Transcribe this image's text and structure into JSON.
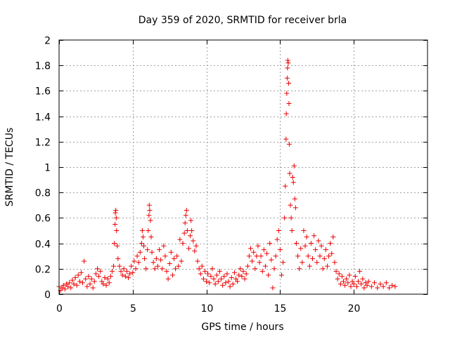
{
  "chart_data": {
    "type": "scatter",
    "title": "Day 359 of 2020, SRMTID for receiver brla",
    "xlabel": "GPS time / hours",
    "ylabel": "SRMTID / TECUs",
    "xlim": [
      0,
      25
    ],
    "ylim": [
      0,
      2
    ],
    "xticks": [
      0,
      5,
      10,
      15,
      20
    ],
    "xtick_labels": [
      "0",
      "5",
      "10",
      "15",
      "20"
    ],
    "yticks": [
      0,
      0.2,
      0.4,
      0.6,
      0.8,
      1,
      1.2,
      1.4,
      1.6,
      1.8,
      2
    ],
    "ytick_labels": [
      "0",
      "0.2",
      "0.4",
      "0.6",
      "0.8",
      "1",
      "1.2",
      "1.4",
      "1.6",
      "1.8",
      "2"
    ],
    "grid": true,
    "marker": "plus",
    "colors": {
      "series": "#ee0000"
    },
    "series": [
      {
        "name": "brla",
        "points": [
          [
            0.0,
            0.06
          ],
          [
            0.1,
            0.03
          ],
          [
            0.2,
            0.05
          ],
          [
            0.3,
            0.07
          ],
          [
            0.4,
            0.04
          ],
          [
            0.5,
            0.08
          ],
          [
            0.6,
            0.06
          ],
          [
            0.7,
            0.09
          ],
          [
            0.8,
            0.05
          ],
          [
            0.9,
            0.11
          ],
          [
            1.0,
            0.08
          ],
          [
            1.1,
            0.13
          ],
          [
            1.2,
            0.07
          ],
          [
            1.3,
            0.15
          ],
          [
            1.4,
            0.1
          ],
          [
            1.5,
            0.17
          ],
          [
            1.6,
            0.09
          ],
          [
            1.7,
            0.26
          ],
          [
            1.8,
            0.12
          ],
          [
            1.9,
            0.06
          ],
          [
            2.0,
            0.14
          ],
          [
            2.1,
            0.08
          ],
          [
            2.2,
            0.12
          ],
          [
            2.3,
            0.05
          ],
          [
            2.4,
            0.1
          ],
          [
            2.5,
            0.16
          ],
          [
            2.6,
            0.2
          ],
          [
            2.7,
            0.14
          ],
          [
            2.8,
            0.18
          ],
          [
            2.9,
            0.1
          ],
          [
            3.0,
            0.08
          ],
          [
            3.1,
            0.13
          ],
          [
            3.2,
            0.07
          ],
          [
            3.3,
            0.12
          ],
          [
            3.4,
            0.09
          ],
          [
            3.5,
            0.14
          ],
          [
            3.6,
            0.18
          ],
          [
            3.7,
            0.22
          ],
          [
            3.75,
            0.4
          ],
          [
            3.8,
            0.55
          ],
          [
            3.82,
            0.64
          ],
          [
            3.85,
            0.66
          ],
          [
            3.88,
            0.6
          ],
          [
            3.9,
            0.5
          ],
          [
            3.95,
            0.38
          ],
          [
            4.0,
            0.28
          ],
          [
            4.1,
            0.22
          ],
          [
            4.2,
            0.18
          ],
          [
            4.3,
            0.15
          ],
          [
            4.4,
            0.2
          ],
          [
            4.5,
            0.14
          ],
          [
            4.6,
            0.18
          ],
          [
            4.7,
            0.13
          ],
          [
            4.8,
            0.16
          ],
          [
            4.9,
            0.22
          ],
          [
            5.0,
            0.17
          ],
          [
            5.1,
            0.26
          ],
          [
            5.2,
            0.2
          ],
          [
            5.3,
            0.3
          ],
          [
            5.4,
            0.25
          ],
          [
            5.5,
            0.33
          ],
          [
            5.6,
            0.4
          ],
          [
            5.65,
            0.5
          ],
          [
            5.7,
            0.45
          ],
          [
            5.75,
            0.38
          ],
          [
            5.8,
            0.28
          ],
          [
            5.9,
            0.2
          ],
          [
            6.0,
            0.35
          ],
          [
            6.05,
            0.5
          ],
          [
            6.1,
            0.62
          ],
          [
            6.12,
            0.7
          ],
          [
            6.15,
            0.66
          ],
          [
            6.2,
            0.58
          ],
          [
            6.25,
            0.45
          ],
          [
            6.3,
            0.33
          ],
          [
            6.4,
            0.25
          ],
          [
            6.5,
            0.2
          ],
          [
            6.6,
            0.28
          ],
          [
            6.7,
            0.22
          ],
          [
            6.8,
            0.35
          ],
          [
            6.9,
            0.27
          ],
          [
            7.0,
            0.2
          ],
          [
            7.1,
            0.38
          ],
          [
            7.2,
            0.3
          ],
          [
            7.3,
            0.18
          ],
          [
            7.4,
            0.12
          ],
          [
            7.5,
            0.24
          ],
          [
            7.6,
            0.33
          ],
          [
            7.7,
            0.15
          ],
          [
            7.8,
            0.28
          ],
          [
            7.9,
            0.2
          ],
          [
            8.0,
            0.3
          ],
          [
            8.1,
            0.22
          ],
          [
            8.2,
            0.43
          ],
          [
            8.3,
            0.26
          ],
          [
            8.4,
            0.4
          ],
          [
            8.5,
            0.48
          ],
          [
            8.55,
            0.56
          ],
          [
            8.6,
            0.62
          ],
          [
            8.65,
            0.66
          ],
          [
            8.7,
            0.5
          ],
          [
            8.8,
            0.36
          ],
          [
            8.9,
            0.46
          ],
          [
            8.95,
            0.58
          ],
          [
            9.0,
            0.5
          ],
          [
            9.1,
            0.42
          ],
          [
            9.2,
            0.34
          ],
          [
            9.3,
            0.38
          ],
          [
            9.4,
            0.26
          ],
          [
            9.5,
            0.2
          ],
          [
            9.6,
            0.16
          ],
          [
            9.7,
            0.22
          ],
          [
            9.8,
            0.12
          ],
          [
            9.9,
            0.18
          ],
          [
            10.0,
            0.1
          ],
          [
            10.1,
            0.16
          ],
          [
            10.2,
            0.09
          ],
          [
            10.3,
            0.14
          ],
          [
            10.4,
            0.2
          ],
          [
            10.5,
            0.12
          ],
          [
            10.6,
            0.08
          ],
          [
            10.7,
            0.15
          ],
          [
            10.8,
            0.1
          ],
          [
            10.9,
            0.18
          ],
          [
            11.0,
            0.12
          ],
          [
            11.1,
            0.07
          ],
          [
            11.2,
            0.14
          ],
          [
            11.3,
            0.09
          ],
          [
            11.4,
            0.16
          ],
          [
            11.5,
            0.1
          ],
          [
            11.6,
            0.06
          ],
          [
            11.7,
            0.13
          ],
          [
            11.8,
            0.08
          ],
          [
            11.9,
            0.17
          ],
          [
            12.0,
            0.12
          ],
          [
            12.1,
            0.1
          ],
          [
            12.2,
            0.15
          ],
          [
            12.3,
            0.2
          ],
          [
            12.4,
            0.14
          ],
          [
            12.5,
            0.18
          ],
          [
            12.6,
            0.12
          ],
          [
            12.7,
            0.16
          ],
          [
            12.8,
            0.22
          ],
          [
            12.9,
            0.3
          ],
          [
            13.0,
            0.36
          ],
          [
            13.1,
            0.26
          ],
          [
            13.2,
            0.33
          ],
          [
            13.3,
            0.2
          ],
          [
            13.4,
            0.3
          ],
          [
            13.5,
            0.38
          ],
          [
            13.6,
            0.25
          ],
          [
            13.7,
            0.3
          ],
          [
            13.8,
            0.18
          ],
          [
            13.9,
            0.35
          ],
          [
            14.0,
            0.22
          ],
          [
            14.1,
            0.32
          ],
          [
            14.2,
            0.15
          ],
          [
            14.3,
            0.4
          ],
          [
            14.4,
            0.27
          ],
          [
            14.5,
            0.05
          ],
          [
            14.6,
            0.2
          ],
          [
            14.7,
            0.3
          ],
          [
            14.8,
            0.43
          ],
          [
            14.9,
            0.5
          ],
          [
            15.0,
            0.35
          ],
          [
            15.1,
            0.15
          ],
          [
            15.2,
            0.25
          ],
          [
            15.3,
            0.6
          ],
          [
            15.35,
            0.85
          ],
          [
            15.4,
            1.22
          ],
          [
            15.42,
            1.42
          ],
          [
            15.45,
            1.58
          ],
          [
            15.48,
            1.7
          ],
          [
            15.5,
            1.78
          ],
          [
            15.52,
            1.84
          ],
          [
            15.55,
            1.82
          ],
          [
            15.58,
            1.66
          ],
          [
            15.6,
            1.5
          ],
          [
            15.62,
            1.18
          ],
          [
            15.65,
            0.95
          ],
          [
            15.7,
            0.7
          ],
          [
            15.75,
            0.6
          ],
          [
            15.8,
            0.5
          ],
          [
            15.85,
            0.92
          ],
          [
            15.9,
            0.88
          ],
          [
            15.95,
            1.01
          ],
          [
            16.0,
            0.75
          ],
          [
            16.05,
            0.68
          ],
          [
            16.1,
            0.4
          ],
          [
            16.2,
            0.3
          ],
          [
            16.3,
            0.2
          ],
          [
            16.4,
            0.36
          ],
          [
            16.5,
            0.25
          ],
          [
            16.6,
            0.5
          ],
          [
            16.7,
            0.38
          ],
          [
            16.8,
            0.45
          ],
          [
            16.9,
            0.3
          ],
          [
            17.0,
            0.22
          ],
          [
            17.1,
            0.4
          ],
          [
            17.2,
            0.28
          ],
          [
            17.3,
            0.46
          ],
          [
            17.4,
            0.35
          ],
          [
            17.5,
            0.25
          ],
          [
            17.6,
            0.42
          ],
          [
            17.7,
            0.3
          ],
          [
            17.8,
            0.38
          ],
          [
            17.9,
            0.2
          ],
          [
            18.0,
            0.28
          ],
          [
            18.1,
            0.35
          ],
          [
            18.2,
            0.22
          ],
          [
            18.3,
            0.3
          ],
          [
            18.4,
            0.4
          ],
          [
            18.5,
            0.32
          ],
          [
            18.6,
            0.45
          ],
          [
            18.7,
            0.25
          ],
          [
            18.8,
            0.18
          ],
          [
            18.9,
            0.12
          ],
          [
            19.0,
            0.16
          ],
          [
            19.1,
            0.08
          ],
          [
            19.2,
            0.14
          ],
          [
            19.3,
            0.1
          ],
          [
            19.4,
            0.07
          ],
          [
            19.5,
            0.12
          ],
          [
            19.6,
            0.09
          ],
          [
            19.7,
            0.15
          ],
          [
            19.8,
            0.06
          ],
          [
            19.9,
            0.1
          ],
          [
            20.0,
            0.08
          ],
          [
            20.1,
            0.14
          ],
          [
            20.2,
            0.06
          ],
          [
            20.3,
            0.1
          ],
          [
            20.4,
            0.18
          ],
          [
            20.5,
            0.08
          ],
          [
            20.6,
            0.12
          ],
          [
            20.7,
            0.05
          ],
          [
            20.8,
            0.09
          ],
          [
            20.9,
            0.07
          ],
          [
            21.0,
            0.1
          ],
          [
            21.2,
            0.06
          ],
          [
            21.4,
            0.09
          ],
          [
            21.6,
            0.05
          ],
          [
            21.8,
            0.08
          ],
          [
            22.0,
            0.06
          ],
          [
            22.2,
            0.09
          ],
          [
            22.4,
            0.05
          ],
          [
            22.6,
            0.07
          ],
          [
            22.8,
            0.06
          ]
        ]
      }
    ]
  }
}
